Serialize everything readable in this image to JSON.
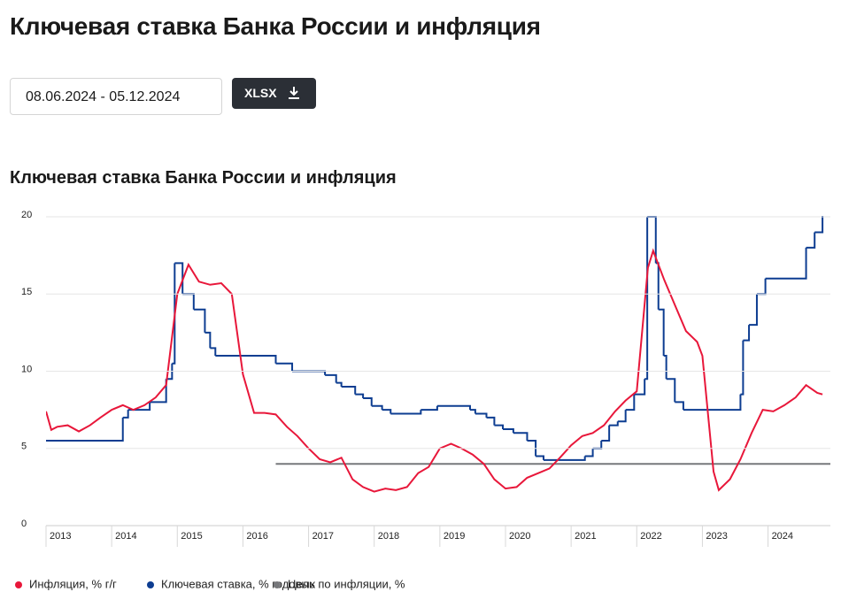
{
  "header": {
    "title": "Ключевая ставка Банка России и инфляция",
    "date_range": "08.06.2024 - 05.12.2024",
    "button": "XLSX"
  },
  "chart_data": {
    "type": "line",
    "title": "Ключевая ставка Банка России и инфляция",
    "xlim": [
      2013,
      2024.95
    ],
    "xticks": [
      2013,
      2014,
      2015,
      2016,
      2017,
      2018,
      2019,
      2020,
      2021,
      2022,
      2023,
      2024
    ],
    "ylim": [
      0,
      20
    ],
    "yticks": [
      0,
      5,
      10,
      15,
      20
    ],
    "grid": true,
    "legend": "bottom",
    "series": [
      {
        "name": "Инфляция, % г/г",
        "color": "#e8173a",
        "step": false,
        "x": [
          2013.0,
          2013.08,
          2013.17,
          2013.33,
          2013.5,
          2013.67,
          2013.83,
          2014.0,
          2014.17,
          2014.33,
          2014.5,
          2014.67,
          2014.83,
          2015.0,
          2015.17,
          2015.33,
          2015.5,
          2015.67,
          2015.83,
          2016.0,
          2016.17,
          2016.33,
          2016.5,
          2016.67,
          2016.83,
          2017.0,
          2017.17,
          2017.33,
          2017.5,
          2017.67,
          2017.83,
          2018.0,
          2018.17,
          2018.33,
          2018.5,
          2018.67,
          2018.83,
          2019.0,
          2019.17,
          2019.33,
          2019.5,
          2019.67,
          2019.83,
          2020.0,
          2020.17,
          2020.33,
          2020.5,
          2020.67,
          2020.83,
          2021.0,
          2021.17,
          2021.33,
          2021.5,
          2021.67,
          2021.83,
          2022.0,
          2022.17,
          2022.25,
          2022.42,
          2022.58,
          2022.75,
          2022.92,
          2023.0,
          2023.17,
          2023.25,
          2023.42,
          2023.58,
          2023.75,
          2023.92,
          2024.08,
          2024.25,
          2024.42,
          2024.58,
          2024.75,
          2024.83
        ],
        "values": [
          7.4,
          6.2,
          6.4,
          6.5,
          6.1,
          6.5,
          7.0,
          7.5,
          7.8,
          7.5,
          7.8,
          8.3,
          9.1,
          15.0,
          16.9,
          15.8,
          15.6,
          15.7,
          15.0,
          9.8,
          7.3,
          7.3,
          7.2,
          6.4,
          5.8,
          5.0,
          4.3,
          4.1,
          4.4,
          3.0,
          2.5,
          2.2,
          2.4,
          2.3,
          2.5,
          3.4,
          3.8,
          5.0,
          5.3,
          5.0,
          4.6,
          4.0,
          3.0,
          2.4,
          2.5,
          3.1,
          3.4,
          3.7,
          4.4,
          5.2,
          5.8,
          6.0,
          6.5,
          7.4,
          8.1,
          8.7,
          16.7,
          17.8,
          15.9,
          14.3,
          12.6,
          11.9,
          11.0,
          3.5,
          2.3,
          3.0,
          4.3,
          6.0,
          7.5,
          7.4,
          7.8,
          8.3,
          9.1,
          8.6,
          8.5
        ]
      },
      {
        "name": "Ключевая ставка, % годовых",
        "color": "#0d3d91",
        "step": true,
        "x": [
          2013.0,
          2014.17,
          2014.25,
          2014.58,
          2014.83,
          2014.92,
          2014.96,
          2015.08,
          2015.25,
          2015.42,
          2015.5,
          2015.58,
          2016.5,
          2016.75,
          2017.25,
          2017.42,
          2017.5,
          2017.71,
          2017.83,
          2017.96,
          2018.12,
          2018.25,
          2018.71,
          2018.96,
          2019.46,
          2019.54,
          2019.71,
          2019.83,
          2019.96,
          2020.12,
          2020.33,
          2020.46,
          2020.58,
          2021.21,
          2021.33,
          2021.46,
          2021.58,
          2021.71,
          2021.83,
          2021.96,
          2022.12,
          2022.16,
          2022.29,
          2022.33,
          2022.41,
          2022.45,
          2022.58,
          2022.71,
          2023.58,
          2023.62,
          2023.71,
          2023.83,
          2023.96,
          2024.58,
          2024.71,
          2024.83
        ],
        "values": [
          5.5,
          7,
          7.5,
          8,
          9.5,
          10.5,
          17,
          15,
          14,
          12.5,
          11.5,
          11,
          10.5,
          10,
          9.75,
          9.25,
          9,
          8.5,
          8.25,
          7.75,
          7.5,
          7.25,
          7.5,
          7.75,
          7.5,
          7.25,
          7,
          6.5,
          6.25,
          6,
          5.5,
          4.5,
          4.25,
          4.5,
          5,
          5.5,
          6.5,
          6.75,
          7.5,
          8.5,
          9.5,
          20,
          17,
          14,
          11,
          9.5,
          8,
          7.5,
          8.5,
          12,
          13,
          15,
          16,
          18,
          19,
          21
        ]
      },
      {
        "name": "Цель по инфляции, %",
        "color": "#77787b",
        "step": false,
        "x": [
          2016.5,
          2024.95
        ],
        "values": [
          4,
          4
        ]
      }
    ]
  }
}
